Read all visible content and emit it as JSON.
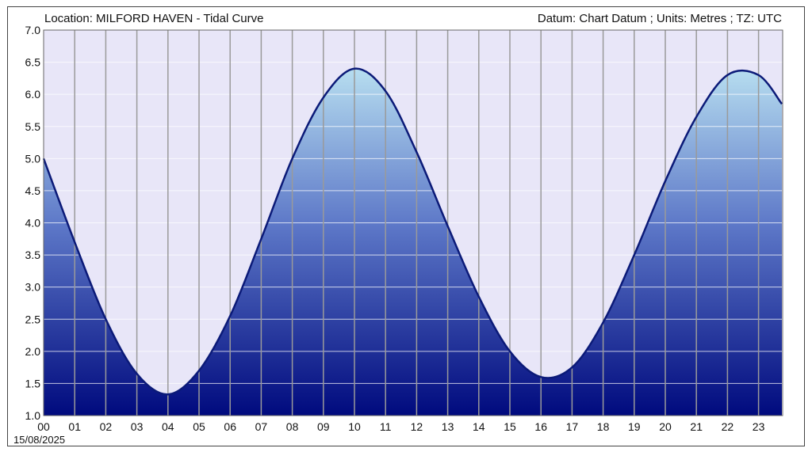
{
  "header": {
    "location": "Location: MILFORD HAVEN - Tidal Curve",
    "datum": "Datum: Chart Datum ; Units: Metres ; TZ: UTC"
  },
  "date_label": "15/08/2025",
  "colors": {
    "plot_bg": "#e8e6f8",
    "curve": "#0b1a78",
    "fill_top": "#b7def0",
    "fill_bottom": "#000a7e",
    "grid_v": "#9a9a9a",
    "grid_h": "#ffffff"
  },
  "chart_data": {
    "type": "area",
    "title": "Location: MILFORD HAVEN - Tidal Curve",
    "xlabel": "",
    "ylabel": "",
    "ylim": [
      1.0,
      7.0
    ],
    "xlim": [
      0,
      24
    ],
    "grid": true,
    "x_ticks": [
      "00",
      "01",
      "02",
      "03",
      "04",
      "05",
      "06",
      "07",
      "08",
      "09",
      "10",
      "11",
      "12",
      "13",
      "14",
      "15",
      "16",
      "17",
      "18",
      "19",
      "20",
      "21",
      "22",
      "23"
    ],
    "y_ticks": [
      "1.0",
      "1.5",
      "2.0",
      "2.5",
      "3.0",
      "3.5",
      "4.0",
      "4.5",
      "5.0",
      "5.5",
      "6.0",
      "6.5",
      "7.0"
    ],
    "series": [
      {
        "x": [
          0,
          1,
          2,
          3,
          4,
          5,
          6,
          7,
          8,
          9,
          10,
          11,
          12,
          13,
          14,
          15,
          16,
          17,
          18,
          19,
          20,
          21,
          22,
          23,
          23.75
        ],
        "values": [
          5.0,
          3.7,
          2.5,
          1.65,
          1.33,
          1.7,
          2.55,
          3.75,
          5.0,
          5.95,
          6.4,
          6.05,
          5.1,
          3.95,
          2.85,
          2.0,
          1.6,
          1.75,
          2.45,
          3.5,
          4.65,
          5.65,
          6.3,
          6.3,
          5.85
        ]
      }
    ]
  }
}
